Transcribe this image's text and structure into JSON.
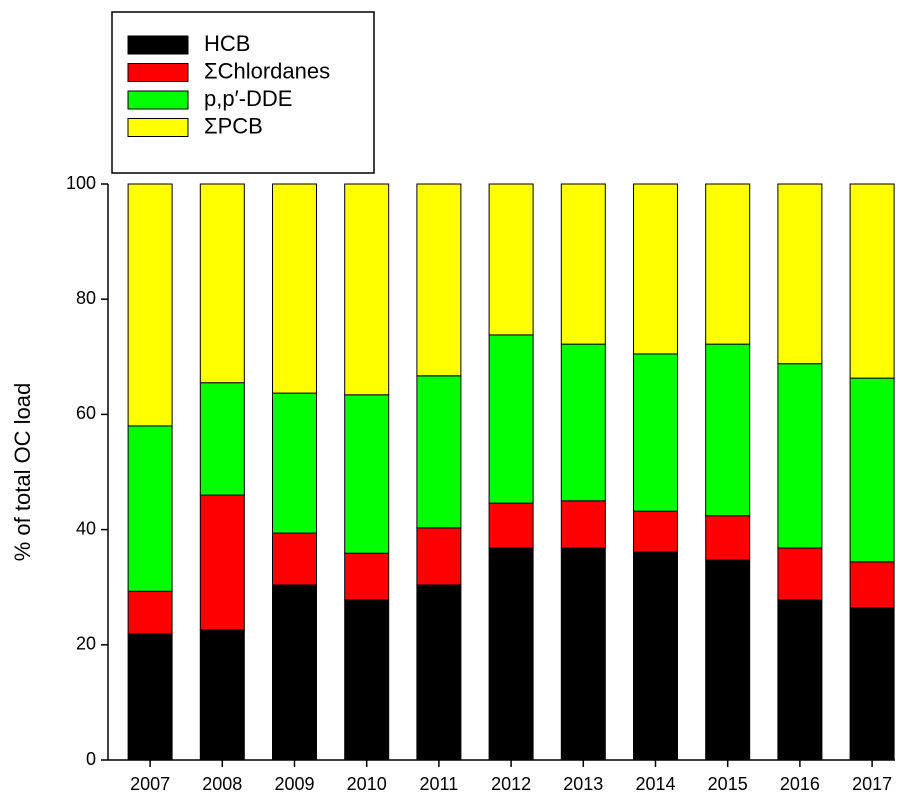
{
  "chart_data": {
    "type": "stacked-bar",
    "ylabel": "% of total OC load",
    "categories": [
      "2007",
      "2008",
      "2009",
      "2010",
      "2011",
      "2012",
      "2013",
      "2014",
      "2015",
      "2016",
      "2017"
    ],
    "series": [
      {
        "name": "HCB",
        "color": "#000000",
        "values": [
          21.9,
          22.6,
          30.4,
          27.8,
          30.4,
          36.8,
          36.8,
          36.1,
          34.7,
          27.8,
          26.4
        ]
      },
      {
        "name": "ΣChlordanes",
        "color": "#ff0000",
        "values": [
          7.4,
          23.4,
          9.0,
          8.1,
          9.9,
          7.8,
          8.2,
          7.1,
          7.7,
          9.0,
          8.0
        ]
      },
      {
        "name": "p,p′-DDE",
        "color": "#00ff00",
        "values": [
          28.7,
          19.5,
          24.3,
          27.5,
          26.4,
          29.2,
          27.2,
          27.3,
          29.8,
          32.0,
          31.9
        ]
      },
      {
        "name": "ΣPCB",
        "color": "#ffff00",
        "values": [
          42.0,
          34.5,
          36.3,
          36.6,
          33.3,
          26.2,
          27.8,
          29.5,
          27.8,
          31.2,
          33.7
        ]
      }
    ],
    "ylim": [
      0,
      100
    ],
    "yticks": [
      0,
      20,
      40,
      60,
      80,
      100
    ],
    "legend": "top-left"
  }
}
